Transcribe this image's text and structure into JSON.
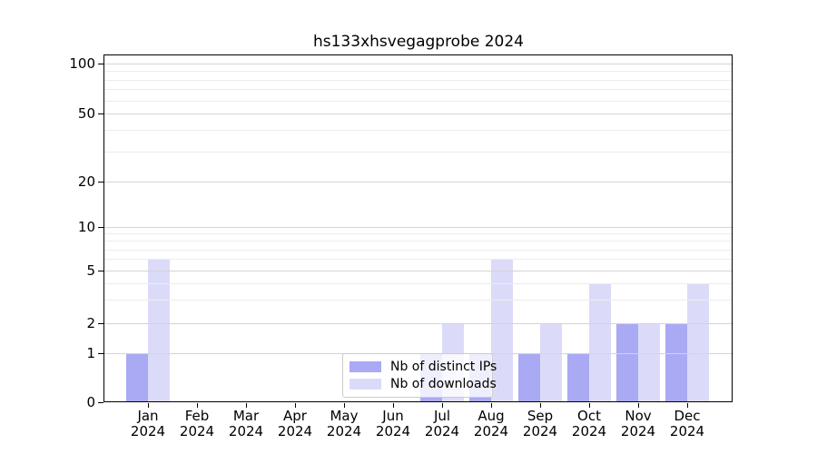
{
  "title": "hs133xhsvegagprobe 2024",
  "colors": {
    "distinct_ips": "#a9a9f4",
    "downloads": "#dbdbf9",
    "grid_major": "#d4d4d4",
    "grid_minor": "#ececec",
    "axis": "#000000",
    "legend_border": "#cccccc"
  },
  "legend": {
    "position": "lower center",
    "items": [
      {
        "label": "Nb of distinct IPs",
        "color": "#a9a9f4"
      },
      {
        "label": "Nb of downloads",
        "color": "#dbdbf9"
      }
    ]
  },
  "chart_data": {
    "type": "bar",
    "title": "hs133xhsvegagprobe 2024",
    "categories": [
      "Jan",
      "Feb",
      "Mar",
      "Apr",
      "May",
      "Jun",
      "Jul",
      "Aug",
      "Sep",
      "Oct",
      "Nov",
      "Dec"
    ],
    "year_label": "2024",
    "series": [
      {
        "name": "Nb of distinct IPs",
        "color": "#a9a9f4",
        "values": [
          1,
          0,
          0,
          0,
          0,
          0,
          1,
          1,
          1,
          1,
          2,
          2
        ]
      },
      {
        "name": "Nb of downloads",
        "color": "#dbdbf9",
        "values": [
          6,
          0,
          0,
          0,
          0,
          0,
          2,
          6,
          2,
          4,
          2,
          4
        ]
      }
    ],
    "y_axis": {
      "scale": "log-like (linear 0-1, log above)",
      "ticks_major": [
        0,
        1,
        2,
        5,
        10,
        20,
        50,
        100
      ],
      "ticks_minor": [
        3,
        4,
        6,
        7,
        8,
        9,
        30,
        40,
        60,
        70,
        80,
        90
      ],
      "ylim": [
        0,
        120
      ]
    },
    "x_axis": {
      "label_line2": "2024"
    },
    "grid": "on",
    "legend_position": "lower center"
  }
}
